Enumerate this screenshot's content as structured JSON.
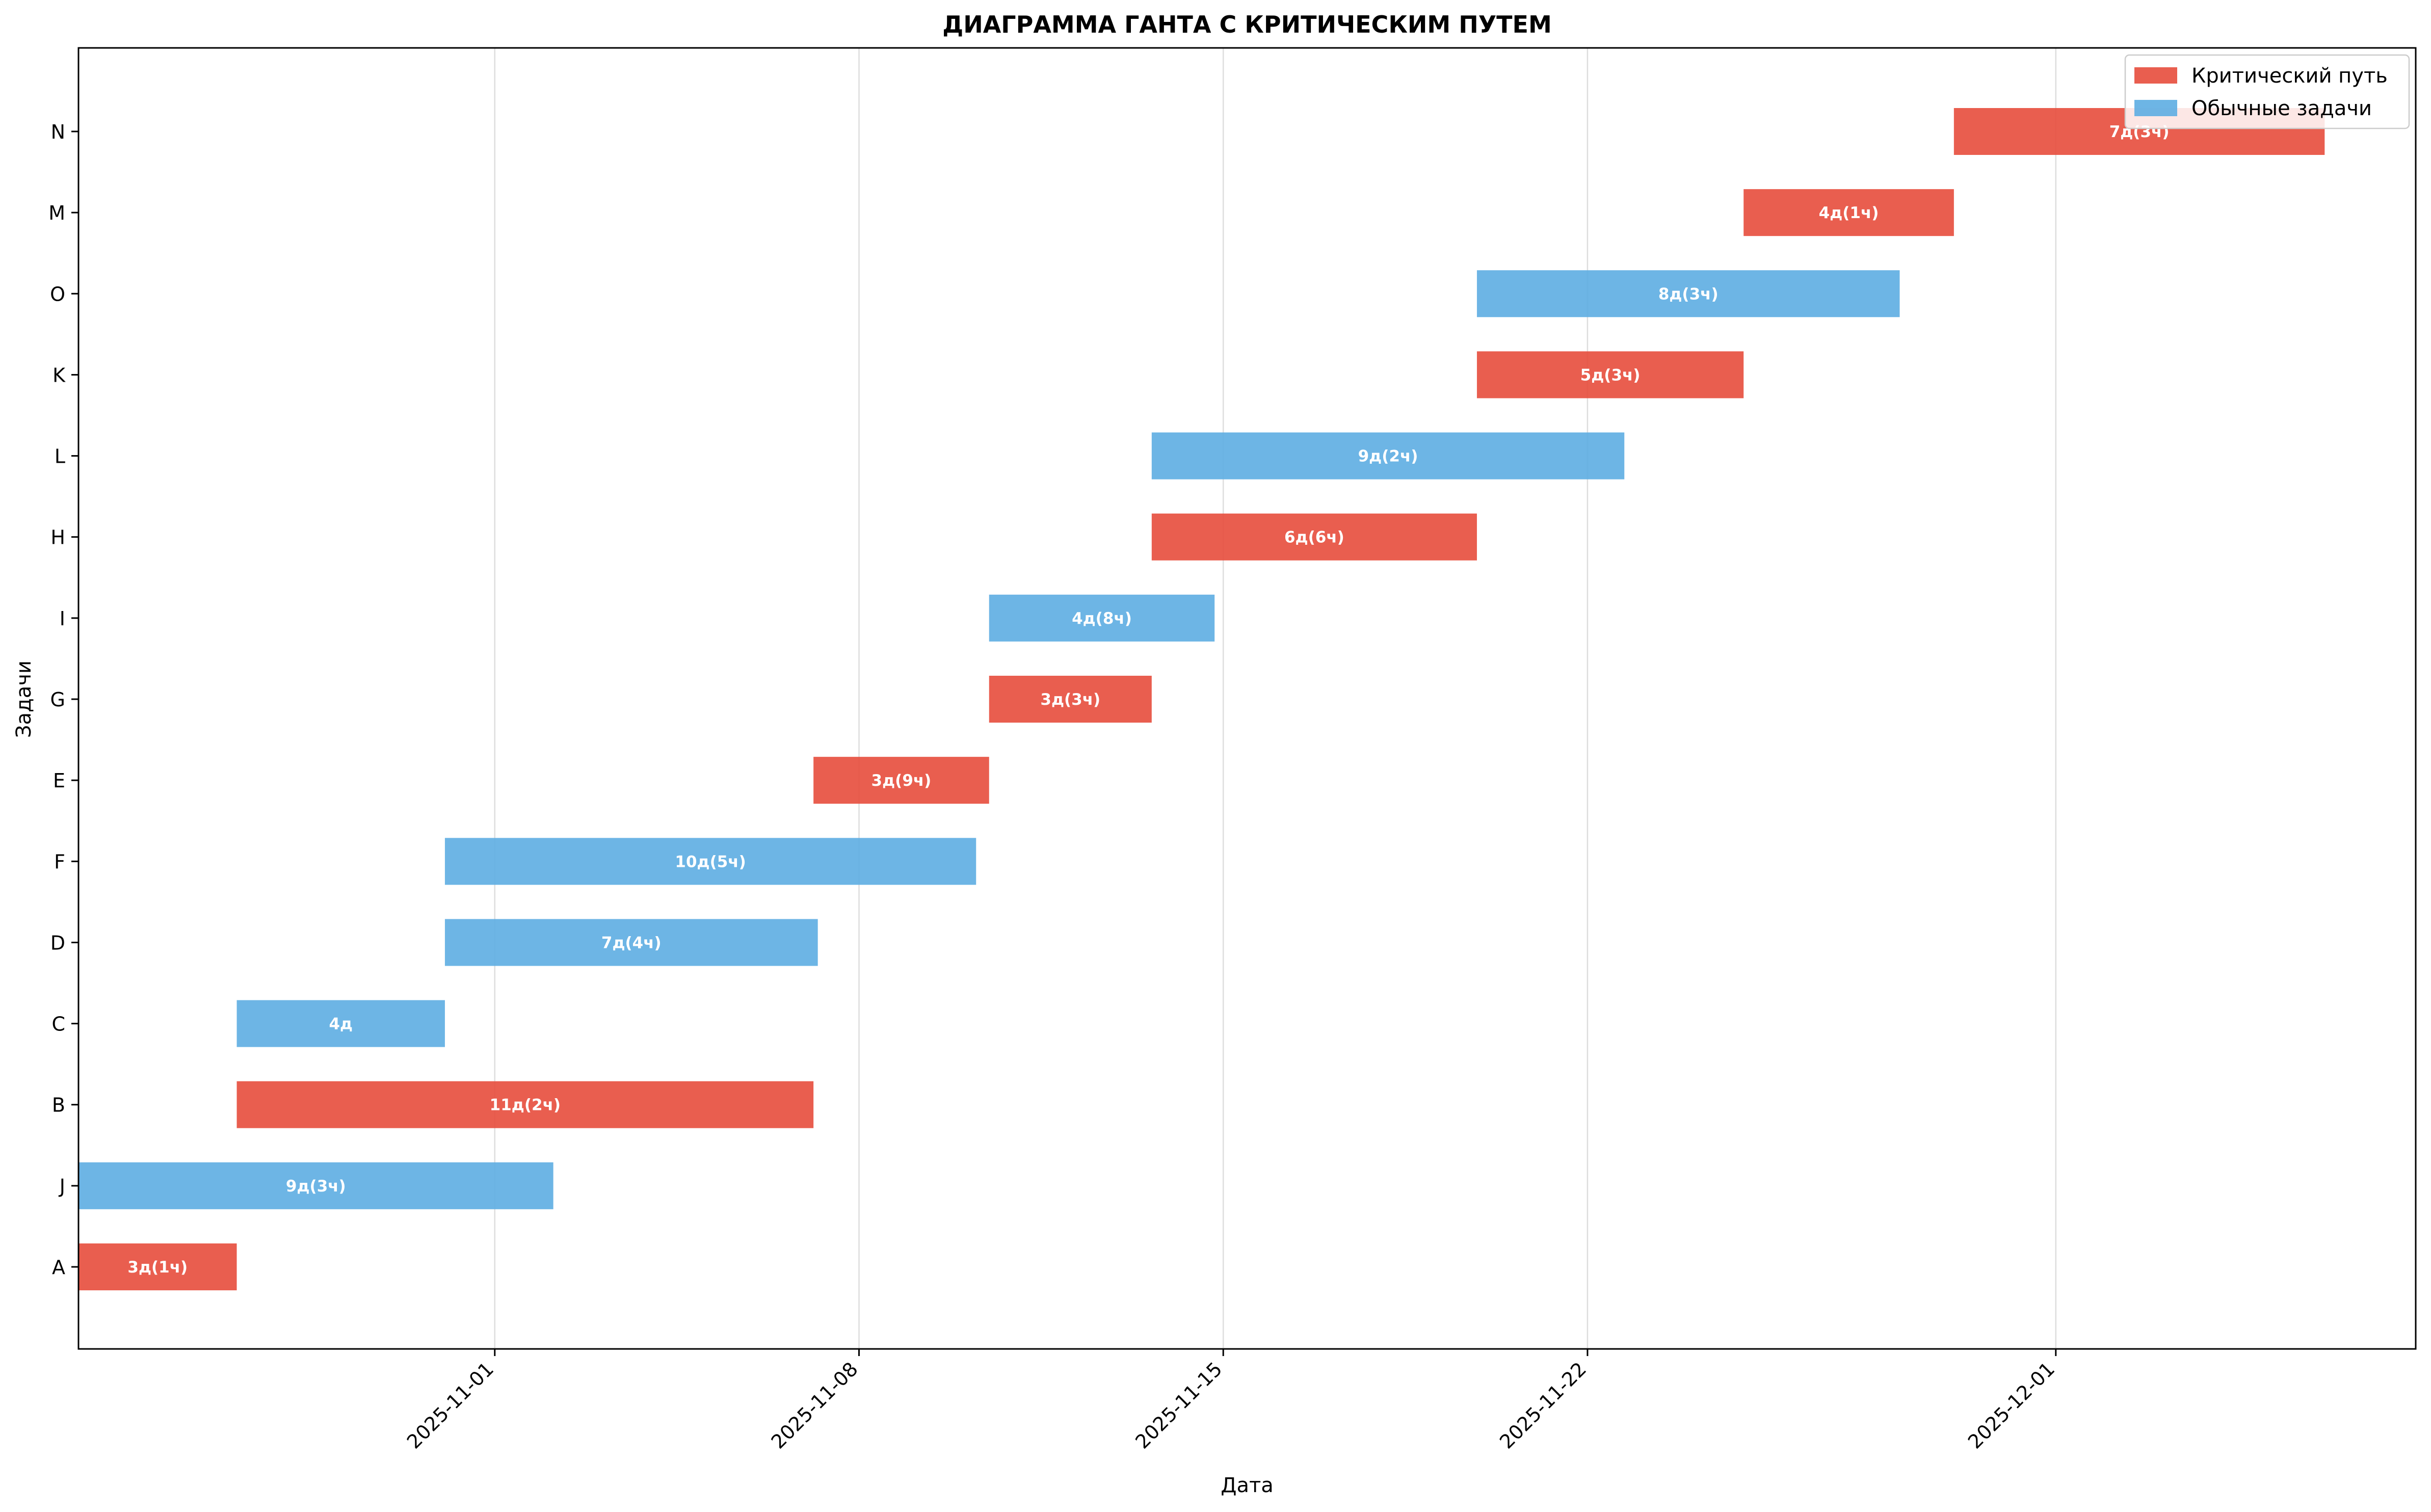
{
  "chart_data": {
    "type": "gantt",
    "title": "ДИАГРАММА ГАНТА С КРИТИЧЕСКИМ ПУТЕМ",
    "xlabel": "Дата",
    "ylabel": "Задачи",
    "x_start": "2025-10-24",
    "x_end": "2025-12-07T22:00",
    "x_ticks": [
      "2025-11-01",
      "2025-11-08",
      "2025-11-15",
      "2025-11-22",
      "2025-12-01"
    ],
    "grid": "vertical",
    "legend_position": "top-right",
    "colors": {
      "critical": "#e74c3c",
      "normal": "#5dade2"
    },
    "legend": [
      {
        "key": "critical",
        "label": "Критический путь"
      },
      {
        "key": "normal",
        "label": "Обычные задачи"
      }
    ],
    "tasks": [
      {
        "name": "A",
        "start": "2025-10-24T00:00",
        "end": "2025-10-27T01:00",
        "label": "3д(1ч)",
        "critical": true
      },
      {
        "name": "J",
        "start": "2025-10-24T00:00",
        "end": "2025-11-02T03:00",
        "label": "9д(3ч)",
        "critical": false
      },
      {
        "name": "B",
        "start": "2025-10-27T01:00",
        "end": "2025-11-07T03:00",
        "label": "11д(2ч)",
        "critical": true
      },
      {
        "name": "C",
        "start": "2025-10-27T01:00",
        "end": "2025-10-31T01:00",
        "label": "4д",
        "critical": false
      },
      {
        "name": "D",
        "start": "2025-10-31T01:00",
        "end": "2025-11-07T05:00",
        "label": "7д(4ч)",
        "critical": false
      },
      {
        "name": "F",
        "start": "2025-10-31T01:00",
        "end": "2025-11-10T06:00",
        "label": "10д(5ч)",
        "critical": false
      },
      {
        "name": "E",
        "start": "2025-11-07T03:00",
        "end": "2025-11-10T12:00",
        "label": "3д(9ч)",
        "critical": true
      },
      {
        "name": "G",
        "start": "2025-11-10T12:00",
        "end": "2025-11-13T15:00",
        "label": "3д(3ч)",
        "critical": true
      },
      {
        "name": "I",
        "start": "2025-11-10T12:00",
        "end": "2025-11-14T20:00",
        "label": "4д(8ч)",
        "critical": false
      },
      {
        "name": "H",
        "start": "2025-11-13T15:00",
        "end": "2025-11-19T21:00",
        "label": "6д(6ч)",
        "critical": true
      },
      {
        "name": "L",
        "start": "2025-11-13T15:00",
        "end": "2025-11-22T17:00",
        "label": "9д(2ч)",
        "critical": false
      },
      {
        "name": "K",
        "start": "2025-11-19T21:00",
        "end": "2025-11-25T00:00",
        "label": "5д(3ч)",
        "critical": true
      },
      {
        "name": "O",
        "start": "2025-11-19T21:00",
        "end": "2025-11-28T00:00",
        "label": "8д(3ч)",
        "critical": false
      },
      {
        "name": "M",
        "start": "2025-11-25T00:00",
        "end": "2025-11-29T01:00",
        "label": "4д(1ч)",
        "critical": true
      },
      {
        "name": "N",
        "start": "2025-11-29T01:00",
        "end": "2025-12-06T04:00",
        "label": "7д(3ч)",
        "critical": true
      }
    ]
  }
}
